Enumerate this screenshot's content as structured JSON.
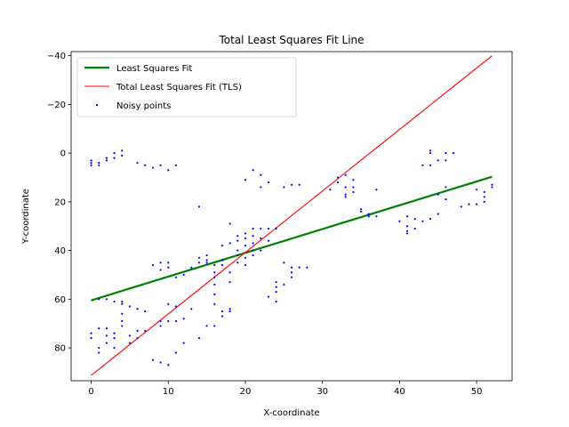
{
  "chart_data": {
    "type": "scatter",
    "title": "Total Least Squares Fit Line",
    "xlabel": "X-coordinate",
    "ylabel": "Y-coordinate",
    "xlim": [
      -2.6,
      54.6
    ],
    "ylim": [
      -41.7,
      93.5
    ],
    "y_inverted": true,
    "xticks": [
      0,
      10,
      20,
      30,
      40,
      50
    ],
    "yticks": [
      -40,
      -20,
      0,
      20,
      40,
      60,
      80
    ],
    "grid": false,
    "legend_position": "upper-left",
    "series": [
      {
        "name": "Least Squares Fit",
        "type": "line",
        "color": "#008000",
        "x": [
          0,
          52
        ],
        "y": [
          60.5,
          9.7
        ]
      },
      {
        "name": "Total Least Squares Fit (TLS)",
        "type": "line",
        "color": "#ff0000",
        "x": [
          0,
          52
        ],
        "y": [
          91.3,
          -40.0
        ]
      },
      {
        "name": "Noisy points",
        "type": "scatter",
        "color": "#0000ff",
        "points": [
          [
            0,
            3
          ],
          [
            0,
            4
          ],
          [
            0,
            5
          ],
          [
            1,
            4
          ],
          [
            1,
            5
          ],
          [
            2,
            2
          ],
          [
            2,
            3
          ],
          [
            3,
            0
          ],
          [
            3,
            2
          ],
          [
            4,
            -1
          ],
          [
            4,
            1
          ],
          [
            6,
            4
          ],
          [
            7,
            5
          ],
          [
            8,
            6
          ],
          [
            9,
            5
          ],
          [
            10,
            7
          ],
          [
            11,
            5
          ],
          [
            0,
            76
          ],
          [
            0,
            74
          ],
          [
            1,
            82
          ],
          [
            1,
            80
          ],
          [
            1,
            72
          ],
          [
            2,
            78
          ],
          [
            2,
            75
          ],
          [
            2,
            72
          ],
          [
            3,
            80
          ],
          [
            3,
            76
          ],
          [
            3,
            74
          ],
          [
            4,
            71
          ],
          [
            4,
            69
          ],
          [
            4,
            66
          ],
          [
            5,
            78
          ],
          [
            5,
            75
          ],
          [
            6,
            73
          ],
          [
            6,
            76
          ],
          [
            7,
            73
          ],
          [
            1,
            60
          ],
          [
            2,
            60
          ],
          [
            3,
            61
          ],
          [
            4,
            61
          ],
          [
            4,
            62
          ],
          [
            5,
            63
          ],
          [
            6,
            64
          ],
          [
            7,
            65
          ],
          [
            8,
            85
          ],
          [
            9,
            86
          ],
          [
            10,
            87
          ],
          [
            11,
            82
          ],
          [
            12,
            78
          ],
          [
            14,
            76
          ],
          [
            15,
            71
          ],
          [
            16,
            71
          ],
          [
            9,
            71
          ],
          [
            9,
            69
          ],
          [
            10,
            69
          ],
          [
            11,
            69
          ],
          [
            12,
            68
          ],
          [
            13,
            64
          ],
          [
            8,
            46
          ],
          [
            9,
            48
          ],
          [
            9,
            45
          ],
          [
            10,
            47
          ],
          [
            10,
            45
          ],
          [
            10,
            62
          ],
          [
            11,
            63
          ],
          [
            11,
            51
          ],
          [
            12,
            50
          ],
          [
            13,
            47
          ],
          [
            14,
            45
          ],
          [
            14,
            43
          ],
          [
            15,
            44
          ],
          [
            15,
            42
          ],
          [
            15,
            45
          ],
          [
            16,
            46
          ],
          [
            16,
            49
          ],
          [
            16,
            51
          ],
          [
            17,
            46
          ],
          [
            17,
            44
          ],
          [
            17,
            38
          ],
          [
            18,
            29
          ],
          [
            18,
            37
          ],
          [
            18,
            49
          ],
          [
            18,
            53
          ],
          [
            18,
            64
          ],
          [
            18,
            65
          ],
          [
            16,
            54
          ],
          [
            16,
            58
          ],
          [
            16,
            62
          ],
          [
            17,
            65
          ],
          [
            17,
            67
          ],
          [
            19,
            34
          ],
          [
            19,
            36
          ],
          [
            19,
            40
          ],
          [
            19,
            42
          ],
          [
            19,
            45
          ],
          [
            20,
            33
          ],
          [
            20,
            35
          ],
          [
            20,
            38
          ],
          [
            20,
            43
          ],
          [
            20,
            46
          ],
          [
            21,
            31
          ],
          [
            21,
            34
          ],
          [
            21,
            37
          ],
          [
            21,
            40
          ],
          [
            21,
            42
          ],
          [
            22,
            31
          ],
          [
            22,
            35
          ],
          [
            22,
            40
          ],
          [
            23,
            31
          ],
          [
            23,
            36
          ],
          [
            24,
            31
          ],
          [
            14,
            22
          ],
          [
            20,
            11
          ],
          [
            21,
            7
          ],
          [
            22,
            9
          ],
          [
            22,
            14
          ],
          [
            23,
            12
          ],
          [
            25,
            14
          ],
          [
            26,
            13
          ],
          [
            27,
            13
          ],
          [
            23,
            59
          ],
          [
            24,
            53
          ],
          [
            24,
            55
          ],
          [
            24,
            57
          ],
          [
            24,
            61
          ],
          [
            25,
            45
          ],
          [
            25,
            54
          ],
          [
            26,
            47
          ],
          [
            26,
            49
          ],
          [
            26,
            51
          ],
          [
            27,
            47
          ],
          [
            28,
            47
          ],
          [
            31,
            15
          ],
          [
            32,
            12
          ],
          [
            32,
            10
          ],
          [
            33,
            9
          ],
          [
            33,
            14
          ],
          [
            33,
            17
          ],
          [
            33,
            18
          ],
          [
            34,
            11
          ],
          [
            34,
            14
          ],
          [
            34,
            16
          ],
          [
            35,
            23
          ],
          [
            35,
            24
          ],
          [
            36,
            25
          ],
          [
            36,
            26
          ],
          [
            37,
            15
          ],
          [
            37,
            26
          ],
          [
            40,
            28
          ],
          [
            41,
            26
          ],
          [
            41,
            30
          ],
          [
            41,
            32
          ],
          [
            41,
            33
          ],
          [
            42,
            27
          ],
          [
            42,
            31
          ],
          [
            43,
            5
          ],
          [
            43,
            28
          ],
          [
            44,
            -1
          ],
          [
            44,
            0
          ],
          [
            44,
            5
          ],
          [
            44,
            27
          ],
          [
            45,
            3
          ],
          [
            45,
            17
          ],
          [
            45,
            25
          ],
          [
            46,
            0
          ],
          [
            46,
            3
          ],
          [
            46,
            14
          ],
          [
            46,
            19
          ],
          [
            47,
            0
          ],
          [
            48,
            22
          ],
          [
            49,
            21
          ],
          [
            50,
            15
          ],
          [
            50,
            21
          ],
          [
            51,
            16
          ],
          [
            51,
            18
          ],
          [
            51,
            20
          ],
          [
            52,
            13
          ],
          [
            52,
            14
          ]
        ]
      }
    ]
  }
}
